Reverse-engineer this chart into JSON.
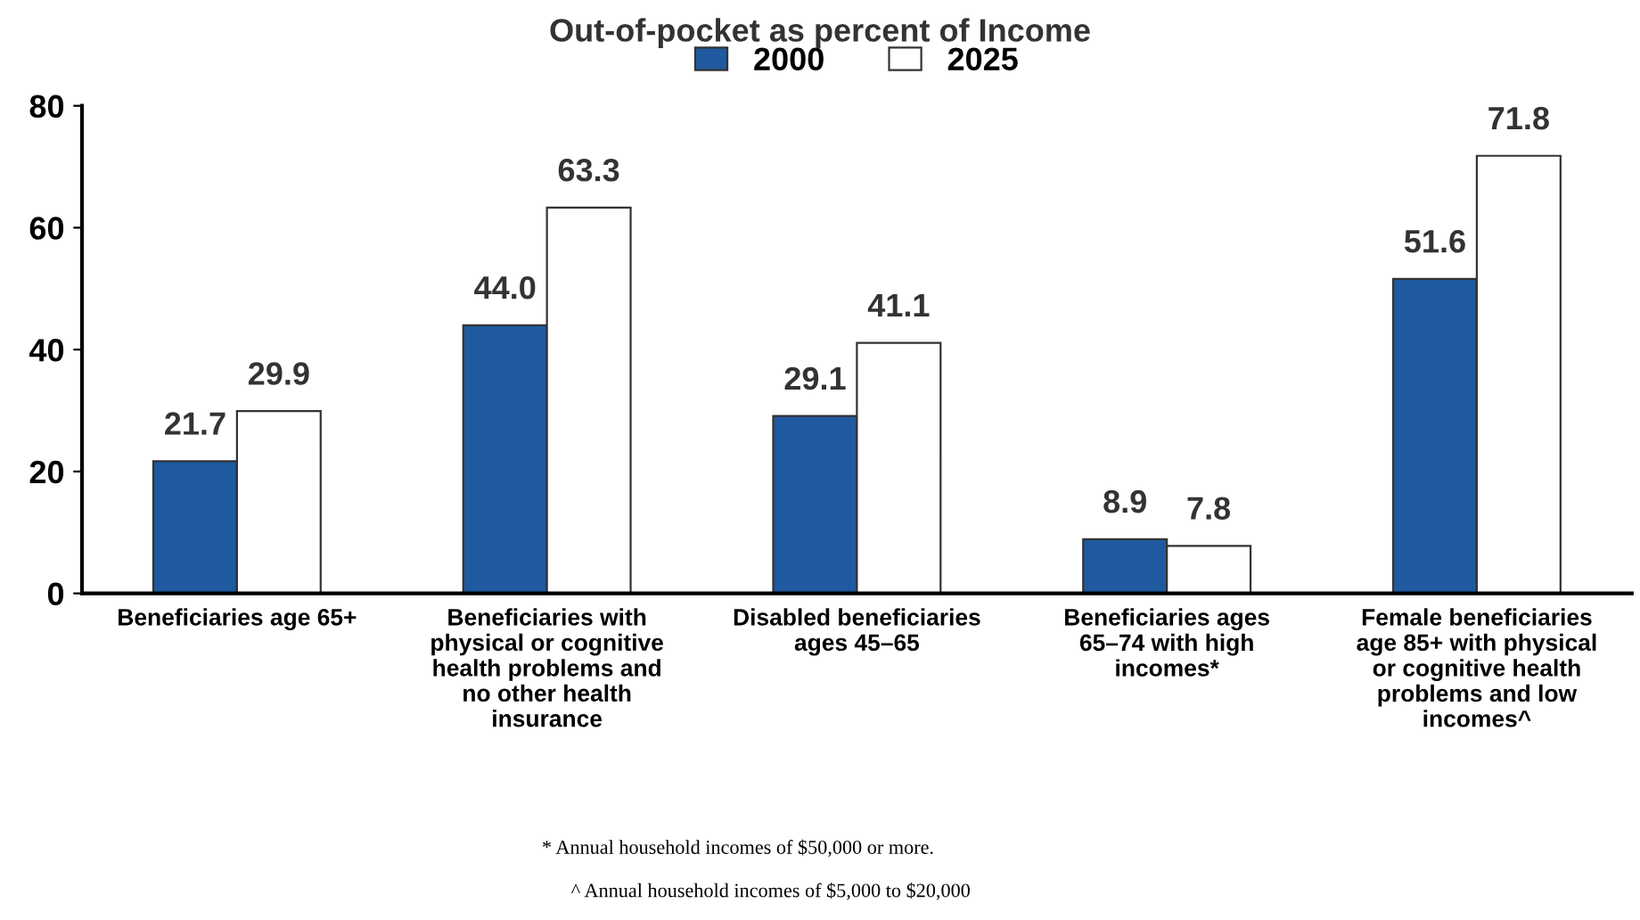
{
  "chart_data": {
    "type": "bar",
    "title": "Out-of-pocket as percent of Income",
    "categories": [
      "Beneficiaries age 65+",
      "Beneficiaries with\nphysical or cognitive\nhealth problems and\nno other health\ninsurance",
      "Disabled beneficiaries\nages 45–65",
      "Beneficiaries ages\n65–74 with high\nincomes*",
      "Female beneficiaries\nage 85+ with physical\nor cognitive health\nproblems and low\nincomes^"
    ],
    "series": [
      {
        "name": "2000",
        "color": "#1f5aa0",
        "values": [
          21.7,
          44.0,
          29.1,
          8.9,
          51.6
        ],
        "value_labels": [
          "21.7",
          "44.0",
          "29.1",
          "8.9",
          "51.6"
        ]
      },
      {
        "name": "2025",
        "color": "#ffffff",
        "values": [
          29.9,
          63.3,
          41.1,
          7.8,
          71.8
        ],
        "value_labels": [
          "29.9",
          "63.3",
          "41.1",
          "7.8",
          "71.8"
        ]
      }
    ],
    "ylim": [
      0,
      80
    ],
    "yticks": [
      0,
      20,
      40,
      60,
      80
    ],
    "grid": false,
    "legend": "top",
    "annotations": [
      "* Annual household incomes of $50,000 or more.",
      "^ Annual household incomes of $5,000 to $20,000"
    ]
  }
}
